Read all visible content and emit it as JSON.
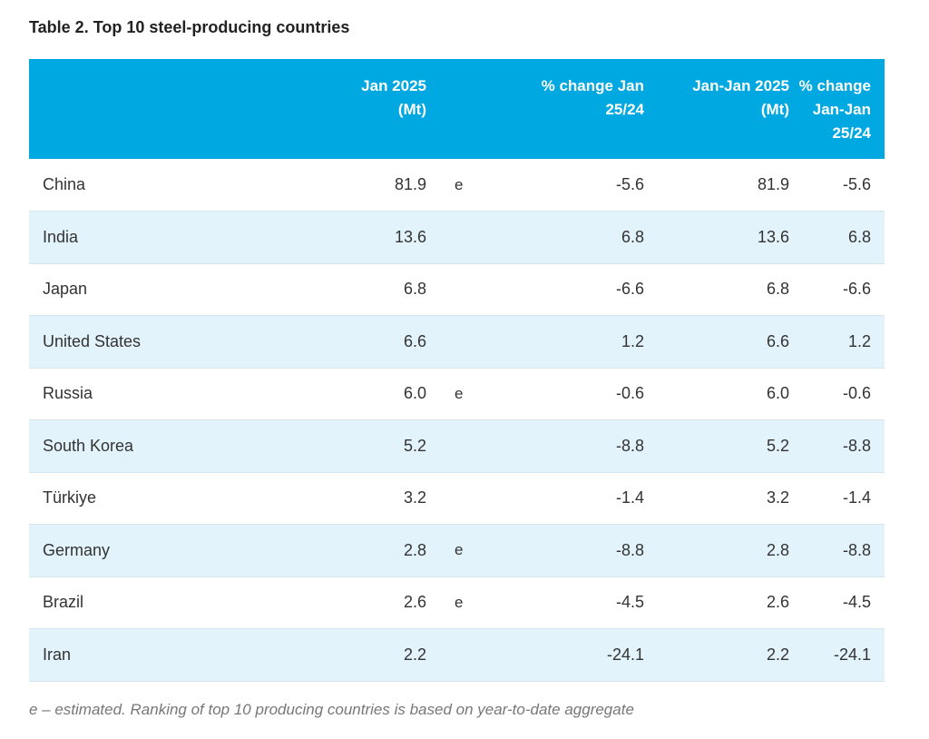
{
  "title": "Table 2. Top 10 steel-producing countries",
  "columns": [
    {
      "key": "country",
      "label": ""
    },
    {
      "key": "jan_mt",
      "label": "Jan 2025 (Mt)"
    },
    {
      "key": "flag",
      "label": ""
    },
    {
      "key": "pct_jan",
      "label": "% change Jan 25/24"
    },
    {
      "key": "ytd_mt",
      "label": "Jan-Jan 2025 (Mt)"
    },
    {
      "key": "pct_ytd",
      "label": "% change Jan-Jan 25/24"
    }
  ],
  "header_lines": {
    "jan_mt": [
      "Jan 2025",
      "(Mt)"
    ],
    "pct_jan": [
      "% change Jan",
      "25/24"
    ],
    "ytd_mt": [
      "Jan-Jan 2025",
      "(Mt)"
    ],
    "pct_ytd": [
      "% change",
      "Jan-Jan",
      "25/24"
    ]
  },
  "rows": [
    {
      "country": "China",
      "jan_mt": "81.9",
      "flag": "e",
      "pct_jan": "-5.6",
      "ytd_mt": "81.9",
      "pct_ytd": "-5.6"
    },
    {
      "country": "India",
      "jan_mt": "13.6",
      "flag": "",
      "pct_jan": "6.8",
      "ytd_mt": "13.6",
      "pct_ytd": "6.8"
    },
    {
      "country": "Japan",
      "jan_mt": "6.8",
      "flag": "",
      "pct_jan": "-6.6",
      "ytd_mt": "6.8",
      "pct_ytd": "-6.6"
    },
    {
      "country": "United States",
      "jan_mt": "6.6",
      "flag": "",
      "pct_jan": "1.2",
      "ytd_mt": "6.6",
      "pct_ytd": "1.2"
    },
    {
      "country": "Russia",
      "jan_mt": "6.0",
      "flag": "e",
      "pct_jan": "-0.6",
      "ytd_mt": "6.0",
      "pct_ytd": "-0.6"
    },
    {
      "country": "South Korea",
      "jan_mt": "5.2",
      "flag": "",
      "pct_jan": "-8.8",
      "ytd_mt": "5.2",
      "pct_ytd": "-8.8"
    },
    {
      "country": "Türkiye",
      "jan_mt": "3.2",
      "flag": "",
      "pct_jan": "-1.4",
      "ytd_mt": "3.2",
      "pct_ytd": "-1.4"
    },
    {
      "country": "Germany",
      "jan_mt": "2.8",
      "flag": "e",
      "pct_jan": "-8.8",
      "ytd_mt": "2.8",
      "pct_ytd": "-8.8"
    },
    {
      "country": "Brazil",
      "jan_mt": "2.6",
      "flag": "e",
      "pct_jan": "-4.5",
      "ytd_mt": "2.6",
      "pct_ytd": "-4.5"
    },
    {
      "country": "Iran",
      "jan_mt": "2.2",
      "flag": "",
      "pct_jan": "-24.1",
      "ytd_mt": "2.2",
      "pct_ytd": "-24.1"
    }
  ],
  "footnote": "e – estimated. Ranking of top 10 producing countries is based on year-to-date aggregate",
  "colors": {
    "header_bg": "#00a8e2",
    "header_text": "#ffffff",
    "row_alt_bg": "#e3f3fb",
    "row_bg": "#ffffff"
  }
}
